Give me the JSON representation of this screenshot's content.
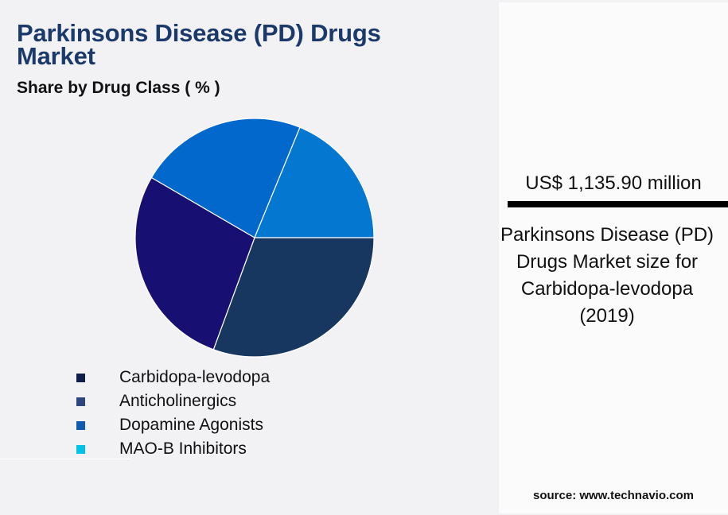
{
  "header": {
    "title": "Parkinsons Disease (PD) Drugs Market",
    "subtitle": "Share by Drug Class ( % )"
  },
  "legend": {
    "items": [
      {
        "label": "Carbidopa-levodopa",
        "color": "#0d1f4a"
      },
      {
        "label": "Anticholinergics",
        "color": "#2d4680"
      },
      {
        "label": "Dopamine Agonists",
        "color": "#0e5bb0"
      },
      {
        "label": "MAO-B Inhibitors",
        "color": "#00c2e6"
      }
    ]
  },
  "kpi": {
    "value": "US$ 1,135.90 million",
    "description": "Parkinsons Disease (PD) Drugs Market size for Carbidopa-levodopa (2019)"
  },
  "footer": {
    "source": "source: www.technavio.com"
  },
  "chart_data": {
    "type": "pie",
    "title": "Parkinsons Disease (PD) Drugs Market",
    "subtitle": "Share by Drug Class ( % )",
    "categories": [
      "Carbidopa-levodopa",
      "Anticholinergics",
      "Dopamine Agonists",
      "MAO-B Inhibitors"
    ],
    "values": [
      30.6,
      27.8,
      22.8,
      18.8
    ],
    "colors": [
      "#173660",
      "#180f73",
      "#0368cc",
      "#0478d1"
    ],
    "start_angle_deg": 0,
    "direction": "clockwise",
    "legend_position": "bottom-left",
    "data_labels": false
  }
}
